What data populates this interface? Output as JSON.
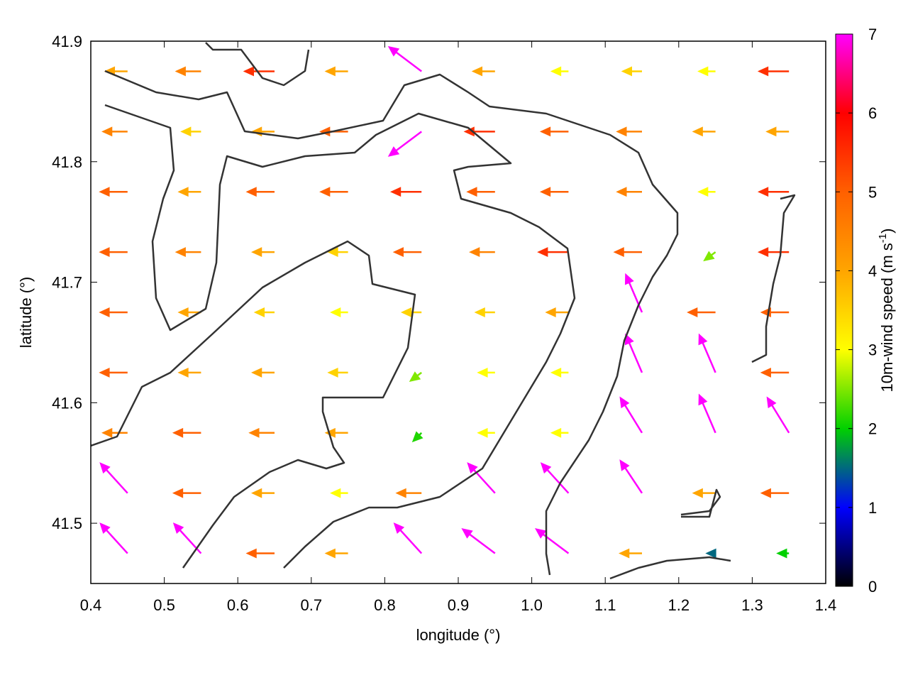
{
  "chart_data": {
    "type": "vector",
    "xlabel": "longitude (°)",
    "ylabel": "latitude (°)",
    "colorbar_label": [
      "10m-wind speed (m s",
      "-1",
      ")"
    ],
    "xlim": [
      0.4,
      1.4
    ],
    "ylim": [
      41.45,
      41.9
    ],
    "xticks": [
      0.4,
      0.5,
      0.6,
      0.7,
      0.8,
      0.9,
      {
        "value": 1,
        "label": "1.0"
      },
      1.1,
      1.2,
      1.3,
      1.4
    ],
    "yticks": [
      41.5,
      41.6,
      41.7,
      41.8,
      41.9
    ],
    "cblim": [
      0,
      7
    ],
    "cbticks": [
      0,
      1,
      2,
      3,
      4,
      5,
      6,
      7
    ],
    "palette": [
      "#000000",
      "#0000ff",
      "#00d000",
      "#ffff00",
      "#ffa500",
      "#ff6000",
      "#ff0000",
      "#ff00ff"
    ],
    "grid": false,
    "x": [
      0.45,
      0.55,
      0.65,
      0.75,
      0.85,
      0.95,
      1.05,
      1.15,
      1.25,
      1.35,
      0.45,
      0.55,
      0.65,
      0.75,
      0.85,
      0.95,
      1.05,
      1.15,
      1.25,
      1.35,
      0.45,
      0.55,
      0.65,
      0.75,
      0.85,
      0.95,
      1.05,
      1.15,
      1.25,
      1.35,
      0.45,
      0.55,
      0.65,
      0.75,
      0.85,
      0.95,
      1.05,
      1.15,
      1.25,
      1.35,
      0.45,
      0.55,
      0.65,
      0.75,
      0.85,
      0.95,
      1.05,
      1.15,
      1.25,
      1.35,
      0.45,
      0.55,
      0.65,
      0.75,
      0.85,
      0.95,
      1.05,
      1.15,
      1.25,
      1.35,
      0.45,
      0.55,
      0.65,
      0.75,
      0.85,
      0.95,
      1.05,
      1.15,
      1.25,
      1.35,
      0.45,
      0.55,
      0.65,
      0.75,
      0.85,
      0.95,
      1.05,
      1.15,
      1.25,
      1.35,
      0.45,
      0.55,
      0.65,
      0.75,
      0.85,
      0.95,
      1.05,
      1.15,
      1.25,
      1.35
    ],
    "y": [
      41.875,
      41.875,
      41.875,
      41.875,
      41.875,
      41.875,
      41.875,
      41.875,
      41.875,
      41.875,
      41.825,
      41.825,
      41.825,
      41.825,
      41.825,
      41.825,
      41.825,
      41.825,
      41.825,
      41.825,
      41.775,
      41.775,
      41.775,
      41.775,
      41.775,
      41.775,
      41.775,
      41.775,
      41.775,
      41.775,
      41.725,
      41.725,
      41.725,
      41.725,
      41.725,
      41.725,
      41.725,
      41.725,
      41.725,
      41.725,
      41.675,
      41.675,
      41.675,
      41.675,
      41.675,
      41.675,
      41.675,
      41.675,
      41.675,
      41.675,
      41.625,
      41.625,
      41.625,
      41.625,
      41.625,
      41.625,
      41.625,
      41.625,
      41.625,
      41.625,
      41.575,
      41.575,
      41.575,
      41.575,
      41.575,
      41.575,
      41.575,
      41.575,
      41.575,
      41.575,
      41.525,
      41.525,
      41.525,
      41.525,
      41.525,
      41.525,
      41.525,
      41.525,
      41.525,
      41.525,
      41.475,
      41.475,
      41.475,
      41.475,
      41.475,
      41.475,
      41.475,
      41.475,
      41.475,
      41.475
    ],
    "u": [
      -4,
      -4.5,
      -5.5,
      -4,
      -6,
      -4,
      -3,
      -3.5,
      -3,
      -5.5,
      -4.5,
      -3.5,
      -4,
      -5,
      -6,
      -5.5,
      -5,
      -4.5,
      -4,
      -4,
      -5,
      -4,
      -5,
      -5,
      -5.5,
      -5,
      -5,
      -4.5,
      -3,
      -5.5,
      -5,
      -4.5,
      -4,
      -3.5,
      -5,
      -4.5,
      -5.5,
      -5,
      -2,
      -5.5,
      -5,
      -4,
      -3.5,
      -3,
      -3.5,
      -3.5,
      -4,
      -3,
      -5,
      -5,
      -5,
      -4,
      -4,
      -3.5,
      -2,
      -3,
      -3,
      -3,
      -3,
      -5,
      -4.5,
      -5,
      -4.5,
      -4,
      -1.5,
      -3,
      -3,
      -4,
      -3,
      -4,
      -5,
      -5,
      -4,
      -3,
      -4.5,
      -5,
      -5,
      -4,
      -4,
      -5,
      -5,
      -5,
      -5,
      -4,
      -5,
      -6,
      -6,
      -4,
      -1.5,
      -2
    ],
    "v": [
      0,
      0,
      0,
      0,
      4.5,
      0,
      0,
      0,
      0,
      0,
      0,
      0,
      0,
      0,
      -4.5,
      0,
      0,
      0,
      0,
      0,
      0,
      0,
      0,
      0,
      0,
      0,
      0,
      0,
      0,
      0,
      0,
      0,
      0,
      0,
      0,
      0,
      0,
      0,
      -1.5,
      0,
      0,
      0,
      0,
      0,
      0,
      0,
      0,
      7,
      0,
      0,
      0,
      0,
      0,
      0,
      -1.5,
      0,
      0,
      7,
      7,
      0,
      0,
      0,
      0,
      0,
      -1.5,
      0,
      0,
      6.5,
      7,
      6.5,
      5.5,
      0,
      0,
      0,
      0,
      5.5,
      5.5,
      6,
      0,
      0,
      5.5,
      5.5,
      0,
      0,
      5.5,
      4.5,
      4.5,
      0,
      0,
      0
    ]
  }
}
